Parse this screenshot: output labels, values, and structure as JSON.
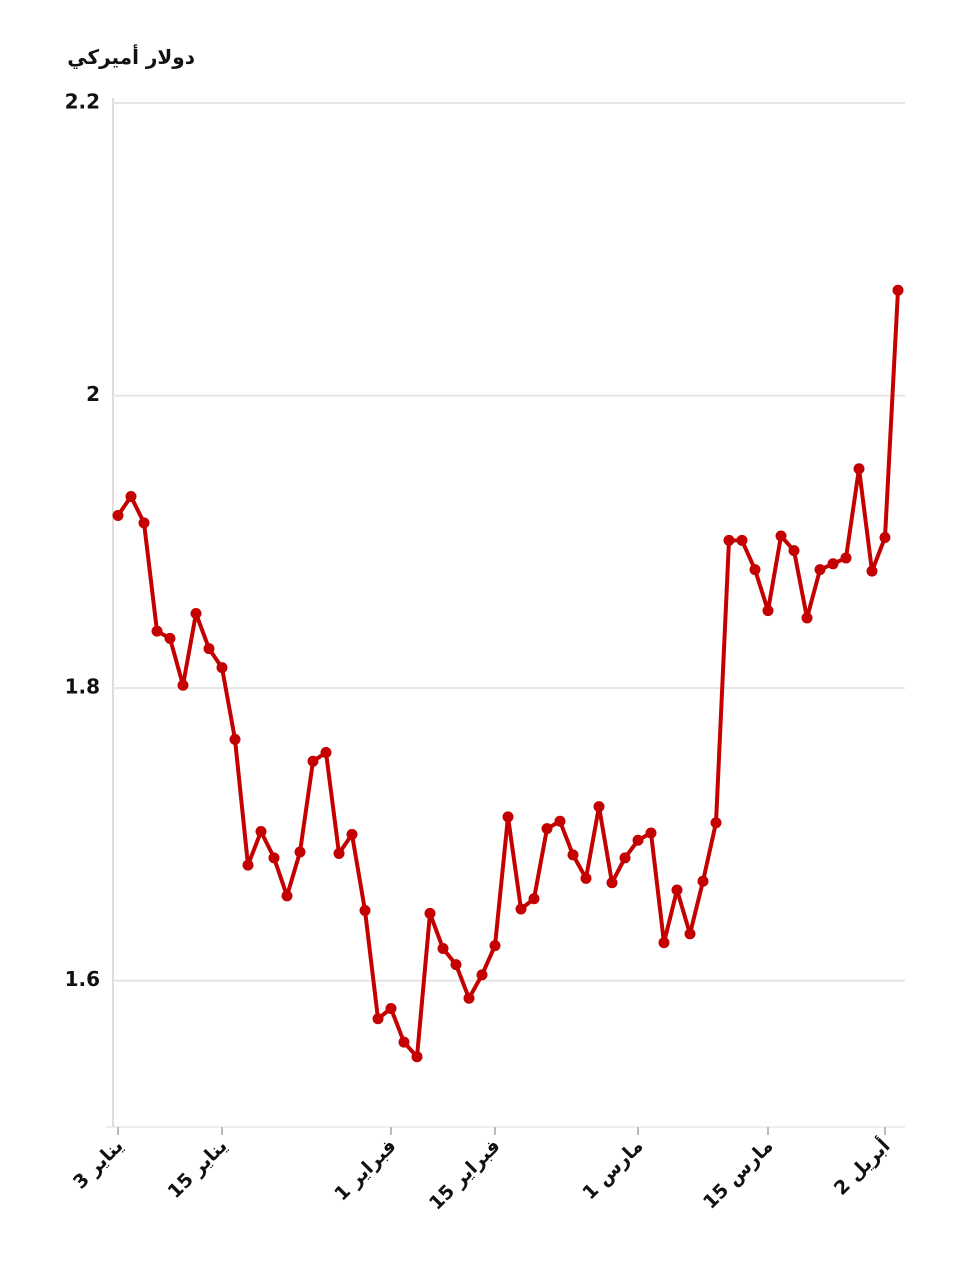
{
  "chart_data": {
    "type": "line",
    "y_label": "دولار أميركي",
    "categories": [
      "يناير 3",
      null,
      null,
      null,
      null,
      null,
      null,
      null,
      "يناير 15",
      null,
      null,
      null,
      null,
      null,
      null,
      null,
      null,
      null,
      null,
      null,
      null,
      "فبراير 1",
      null,
      null,
      null,
      null,
      null,
      null,
      null,
      "فبراير 15",
      null,
      null,
      null,
      null,
      null,
      null,
      null,
      null,
      null,
      null,
      "مارس 1",
      null,
      null,
      null,
      null,
      null,
      null,
      null,
      null,
      null,
      "مارس 15",
      null,
      null,
      null,
      null,
      null,
      null,
      null,
      null,
      "أبريل 2",
      null
    ],
    "series": [
      {
        "color": "#c40000",
        "values": [
          1.918,
          1.931,
          1.913,
          1.839,
          1.834,
          1.802,
          1.851,
          1.827,
          1.814,
          1.765,
          1.679,
          1.702,
          1.684,
          1.658,
          1.688,
          1.75,
          1.756,
          1.687,
          1.7,
          1.648,
          1.574,
          1.581,
          1.558,
          1.548,
          1.646,
          1.622,
          1.611,
          1.588,
          1.604,
          1.624,
          1.712,
          1.649,
          1.656,
          1.704,
          1.709,
          1.686,
          1.67,
          1.719,
          1.667,
          1.684,
          1.696,
          1.701,
          1.626,
          1.662,
          1.632,
          1.668,
          1.708,
          1.901,
          1.901,
          1.881,
          1.853,
          1.904,
          1.894,
          1.848,
          1.881,
          1.885,
          1.889,
          1.95,
          1.88,
          1.903,
          2.072
        ]
      }
    ],
    "ylim": [
      1.5,
      2.2
    ],
    "yticks": [
      1.6,
      1.8,
      2,
      2.2
    ],
    "grid": true
  }
}
